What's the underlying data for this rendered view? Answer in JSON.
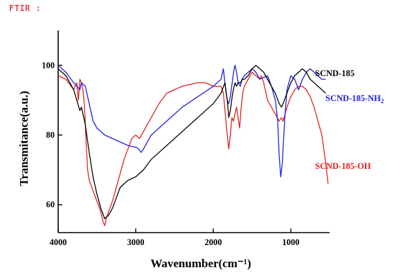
{
  "header": {
    "label": "FTIR :"
  },
  "chart_data": {
    "type": "line",
    "xlabel": "Wavenumber(cm⁻¹)",
    "ylabel": "Transmitance(a.u.)",
    "xlim": [
      4000,
      500
    ],
    "ylim": [
      52,
      110
    ],
    "x_ticks": [
      {
        "value": 4000,
        "label": "4000"
      },
      {
        "value": 3000,
        "label": "3000"
      },
      {
        "value": 2000,
        "label": "2000"
      },
      {
        "value": 1000,
        "label": "1000"
      }
    ],
    "y_ticks": [
      {
        "value": 100,
        "label": "100"
      },
      {
        "value": 80,
        "label": "80"
      },
      {
        "value": 60,
        "label": "60"
      }
    ],
    "grid": false,
    "series": [
      {
        "name": "SCND-185",
        "color": "#000000",
        "points": [
          [
            4000,
            99
          ],
          [
            3900,
            97
          ],
          [
            3800,
            93
          ],
          [
            3720,
            87
          ],
          [
            3700,
            88
          ],
          [
            3650,
            83
          ],
          [
            3600,
            75
          ],
          [
            3550,
            68
          ],
          [
            3500,
            63
          ],
          [
            3450,
            59
          ],
          [
            3400,
            56
          ],
          [
            3350,
            57
          ],
          [
            3300,
            59
          ],
          [
            3250,
            62
          ],
          [
            3200,
            65
          ],
          [
            3100,
            67
          ],
          [
            3000,
            68
          ],
          [
            2900,
            70
          ],
          [
            2800,
            73
          ],
          [
            2600,
            77
          ],
          [
            2400,
            81
          ],
          [
            2200,
            85
          ],
          [
            2000,
            89
          ],
          [
            1900,
            92
          ],
          [
            1850,
            95
          ],
          [
            1820,
            90
          ],
          [
            1800,
            85
          ],
          [
            1780,
            87
          ],
          [
            1750,
            92
          ],
          [
            1720,
            95
          ],
          [
            1700,
            94
          ],
          [
            1680,
            95
          ],
          [
            1650,
            95
          ],
          [
            1620,
            96
          ],
          [
            1600,
            96
          ],
          [
            1550,
            97
          ],
          [
            1500,
            99
          ],
          [
            1450,
            100
          ],
          [
            1400,
            99
          ],
          [
            1350,
            98
          ],
          [
            1300,
            96
          ],
          [
            1250,
            94
          ],
          [
            1200,
            92
          ],
          [
            1150,
            89
          ],
          [
            1120,
            88
          ],
          [
            1100,
            89
          ],
          [
            1050,
            92
          ],
          [
            1000,
            95
          ],
          [
            950,
            97
          ],
          [
            900,
            98
          ],
          [
            850,
            99
          ],
          [
            800,
            98
          ],
          [
            750,
            96
          ],
          [
            700,
            95
          ],
          [
            650,
            94
          ],
          [
            600,
            93
          ],
          [
            550,
            92
          ]
        ]
      },
      {
        "name": "SCND-185-NH₂",
        "color": "#1f1fe0",
        "points": [
          [
            4000,
            100
          ],
          [
            3900,
            98
          ],
          [
            3800,
            95
          ],
          [
            3720,
            93
          ],
          [
            3700,
            95
          ],
          [
            3650,
            94
          ],
          [
            3600,
            89
          ],
          [
            3550,
            84
          ],
          [
            3500,
            82
          ],
          [
            3450,
            81
          ],
          [
            3400,
            80
          ],
          [
            3300,
            79
          ],
          [
            3200,
            78
          ],
          [
            3100,
            77
          ],
          [
            3000,
            76.5
          ],
          [
            2960,
            76
          ],
          [
            2930,
            75
          ],
          [
            2900,
            76
          ],
          [
            2800,
            80
          ],
          [
            2600,
            84
          ],
          [
            2400,
            88
          ],
          [
            2200,
            91
          ],
          [
            2000,
            94
          ],
          [
            1900,
            96
          ],
          [
            1870,
            99
          ],
          [
            1840,
            93
          ],
          [
            1820,
            90
          ],
          [
            1800,
            89
          ],
          [
            1780,
            91
          ],
          [
            1750,
            96
          ],
          [
            1730,
            99
          ],
          [
            1720,
            100
          ],
          [
            1700,
            98
          ],
          [
            1680,
            95
          ],
          [
            1650,
            94
          ],
          [
            1630,
            96
          ],
          [
            1600,
            97
          ],
          [
            1550,
            98
          ],
          [
            1500,
            99
          ],
          [
            1450,
            98
          ],
          [
            1400,
            96
          ],
          [
            1300,
            97
          ],
          [
            1250,
            94
          ],
          [
            1200,
            90
          ],
          [
            1170,
            84
          ],
          [
            1150,
            74
          ],
          [
            1130,
            68
          ],
          [
            1110,
            72
          ],
          [
            1080,
            84
          ],
          [
            1050,
            93
          ],
          [
            1000,
            97
          ],
          [
            950,
            96
          ],
          [
            900,
            93
          ],
          [
            850,
            96
          ],
          [
            800,
            98
          ],
          [
            750,
            99
          ],
          [
            700,
            98
          ],
          [
            650,
            97
          ],
          [
            600,
            96
          ],
          [
            550,
            96
          ]
        ]
      },
      {
        "name": "SCND-185-OH",
        "color": "#e02020",
        "points": [
          [
            4000,
            97
          ],
          [
            3900,
            96
          ],
          [
            3800,
            93
          ],
          [
            3760,
            95
          ],
          [
            3740,
            90
          ],
          [
            3720,
            96
          ],
          [
            3700,
            95
          ],
          [
            3680,
            93
          ],
          [
            3660,
            88
          ],
          [
            3640,
            78
          ],
          [
            3620,
            70
          ],
          [
            3600,
            67
          ],
          [
            3550,
            64
          ],
          [
            3500,
            61
          ],
          [
            3450,
            58
          ],
          [
            3420,
            55
          ],
          [
            3400,
            54
          ],
          [
            3380,
            56
          ],
          [
            3350,
            58
          ],
          [
            3300,
            61
          ],
          [
            3250,
            65
          ],
          [
            3200,
            69
          ],
          [
            3150,
            73
          ],
          [
            3100,
            76
          ],
          [
            3050,
            79
          ],
          [
            3000,
            80
          ],
          [
            2950,
            79
          ],
          [
            2900,
            81
          ],
          [
            2800,
            85
          ],
          [
            2700,
            89
          ],
          [
            2600,
            92
          ],
          [
            2500,
            93
          ],
          [
            2400,
            94
          ],
          [
            2300,
            94.5
          ],
          [
            2200,
            95
          ],
          [
            2100,
            95
          ],
          [
            2000,
            94
          ],
          [
            1950,
            94
          ],
          [
            1900,
            94
          ],
          [
            1870,
            92
          ],
          [
            1840,
            85
          ],
          [
            1820,
            80
          ],
          [
            1800,
            76
          ],
          [
            1780,
            80
          ],
          [
            1760,
            85
          ],
          [
            1740,
            84
          ],
          [
            1720,
            86
          ],
          [
            1700,
            88
          ],
          [
            1680,
            85
          ],
          [
            1660,
            82
          ],
          [
            1640,
            88
          ],
          [
            1620,
            92
          ],
          [
            1600,
            94
          ],
          [
            1550,
            96
          ],
          [
            1500,
            98
          ],
          [
            1450,
            97
          ],
          [
            1400,
            96
          ],
          [
            1380,
            97
          ],
          [
            1350,
            95
          ],
          [
            1300,
            90
          ],
          [
            1250,
            88
          ],
          [
            1200,
            86
          ],
          [
            1150,
            84
          ],
          [
            1120,
            85
          ],
          [
            1100,
            84
          ],
          [
            1050,
            88
          ],
          [
            1000,
            91
          ],
          [
            950,
            93
          ],
          [
            900,
            94
          ],
          [
            850,
            94
          ],
          [
            800,
            93
          ],
          [
            750,
            91
          ],
          [
            700,
            88
          ],
          [
            650,
            84
          ],
          [
            600,
            80
          ],
          [
            550,
            72
          ],
          [
            520,
            66
          ]
        ]
      }
    ],
    "annotations": [
      {
        "text": "SCND-185-NH",
        "sub": "2",
        "color": "#1f1fe0",
        "series": 1
      },
      {
        "text": "SCND-185",
        "sub": "",
        "color": "#000000",
        "series": 0
      },
      {
        "text": "SCND-185-OH",
        "sub": "",
        "color": "#e02020",
        "series": 2
      }
    ]
  }
}
